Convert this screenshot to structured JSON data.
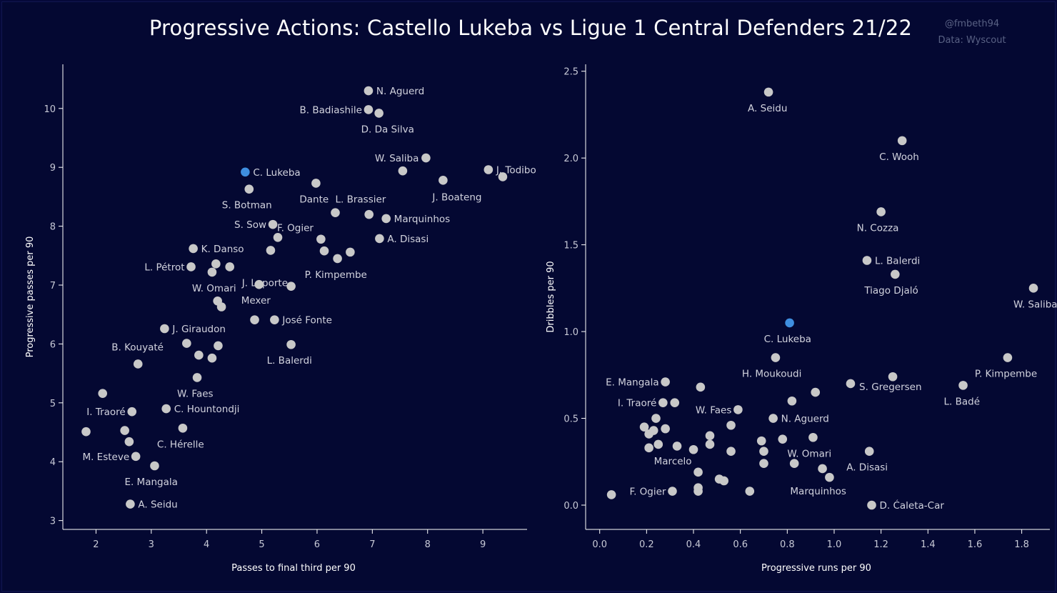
{
  "title": "Progressive Actions: Castello Lukeba vs Ligue 1 Central Defenders 21/22",
  "credit_handle": "@fmbeth94",
  "credit_source": "Data: Wyscout",
  "colors": {
    "background": "#040832",
    "point": "#c8c8c8",
    "highlight": "#3f8fe0",
    "axis": "#ffffff",
    "text": "#d2d3de"
  },
  "chart_data": [
    {
      "type": "scatter",
      "xlabel": "Passes to final third per 90",
      "ylabel": "Progressive passes per 90",
      "xlim": [
        1.4,
        9.8
      ],
      "ylim": [
        2.85,
        10.75
      ],
      "xticks": [
        2,
        3,
        4,
        5,
        6,
        7,
        8,
        9
      ],
      "yticks": [
        3,
        4,
        5,
        6,
        7,
        8,
        9,
        10
      ],
      "grid": false,
      "highlight_color": "#3f8fe0",
      "points": [
        {
          "x": 4.7,
          "y": 8.92,
          "label": "C. Lukeba",
          "highlight": true
        },
        {
          "x": 6.93,
          "y": 10.3,
          "label": "N. Aguerd"
        },
        {
          "x": 6.93,
          "y": 9.98,
          "label": "B. Badiashile"
        },
        {
          "x": 7.12,
          "y": 9.92,
          "label": "D. Da Silva"
        },
        {
          "x": 7.97,
          "y": 9.16,
          "label": "W. Saliba"
        },
        {
          "x": 7.55,
          "y": 8.94,
          "label": ""
        },
        {
          "x": 9.1,
          "y": 8.96,
          "label": "J. Todibo"
        },
        {
          "x": 9.36,
          "y": 8.84,
          "label": ""
        },
        {
          "x": 8.28,
          "y": 8.78,
          "label": "J. Boateng"
        },
        {
          "x": 4.77,
          "y": 8.63,
          "label": "S. Botman"
        },
        {
          "x": 5.98,
          "y": 8.73,
          "label": "Dante"
        },
        {
          "x": 6.33,
          "y": 8.23,
          "label": "L. Brassier"
        },
        {
          "x": 6.94,
          "y": 8.2,
          "label": ""
        },
        {
          "x": 7.25,
          "y": 8.13,
          "label": "Marquinhos"
        },
        {
          "x": 5.2,
          "y": 8.03,
          "label": "S. Sow"
        },
        {
          "x": 5.29,
          "y": 7.81,
          "label": "F. Ogier"
        },
        {
          "x": 6.07,
          "y": 7.78,
          "label": ""
        },
        {
          "x": 7.13,
          "y": 7.79,
          "label": "A. Disasi"
        },
        {
          "x": 5.16,
          "y": 7.59,
          "label": ""
        },
        {
          "x": 6.13,
          "y": 7.58,
          "label": ""
        },
        {
          "x": 6.6,
          "y": 7.56,
          "label": ""
        },
        {
          "x": 6.37,
          "y": 7.45,
          "label": "P. Kimpembe"
        },
        {
          "x": 3.76,
          "y": 7.62,
          "label": "K. Danso"
        },
        {
          "x": 3.72,
          "y": 7.31,
          "label": "L. Pétrot"
        },
        {
          "x": 4.17,
          "y": 7.36,
          "label": ""
        },
        {
          "x": 4.1,
          "y": 7.22,
          "label": "W. Omari"
        },
        {
          "x": 4.42,
          "y": 7.31,
          "label": "J. Laporte"
        },
        {
          "x": 4.95,
          "y": 7.01,
          "label": "Mexer"
        },
        {
          "x": 5.53,
          "y": 6.98,
          "label": ""
        },
        {
          "x": 4.2,
          "y": 6.73,
          "label": ""
        },
        {
          "x": 4.27,
          "y": 6.63,
          "label": ""
        },
        {
          "x": 4.87,
          "y": 6.41,
          "label": ""
        },
        {
          "x": 5.23,
          "y": 6.41,
          "label": "José Fonte"
        },
        {
          "x": 3.24,
          "y": 6.26,
          "label": "J. Giraudon"
        },
        {
          "x": 3.64,
          "y": 6.01,
          "label": ""
        },
        {
          "x": 4.21,
          "y": 5.97,
          "label": ""
        },
        {
          "x": 5.53,
          "y": 5.99,
          "label": "L. Balerdi"
        },
        {
          "x": 3.86,
          "y": 5.81,
          "label": ""
        },
        {
          "x": 4.1,
          "y": 5.76,
          "label": ""
        },
        {
          "x": 2.76,
          "y": 5.66,
          "label": "B. Kouyaté"
        },
        {
          "x": 3.83,
          "y": 5.43,
          "label": "W. Faes"
        },
        {
          "x": 2.12,
          "y": 5.16,
          "label": ""
        },
        {
          "x": 2.65,
          "y": 4.85,
          "label": "I. Traoré"
        },
        {
          "x": 3.27,
          "y": 4.9,
          "label": "C. Hountondji"
        },
        {
          "x": 1.82,
          "y": 4.51,
          "label": ""
        },
        {
          "x": 2.52,
          "y": 4.53,
          "label": ""
        },
        {
          "x": 2.6,
          "y": 4.34,
          "label": ""
        },
        {
          "x": 3.57,
          "y": 4.57,
          "label": "C. Hérelle"
        },
        {
          "x": 2.72,
          "y": 4.09,
          "label": "M. Esteve"
        },
        {
          "x": 3.06,
          "y": 3.93,
          "label": "E. Mangala"
        },
        {
          "x": 2.62,
          "y": 3.28,
          "label": "A. Seidu"
        }
      ]
    },
    {
      "type": "scatter",
      "xlabel": "Progressive runs per 90",
      "ylabel": "Dribbles per 90",
      "xlim": [
        -0.06,
        1.92
      ],
      "ylim": [
        -0.14,
        2.54
      ],
      "xticks": [
        "0.0",
        "0.2",
        "0.4",
        "0.6",
        "0.8",
        "1.0",
        "1.2",
        "1.4",
        "1.6",
        "1.8"
      ],
      "yticks": [
        "0.0",
        "0.5",
        "1.0",
        "1.5",
        "2.0",
        "2.5"
      ],
      "grid": false,
      "highlight_color": "#3f8fe0",
      "points": [
        {
          "x": 0.81,
          "y": 1.05,
          "label": "C. Lukeba",
          "highlight": true
        },
        {
          "x": 0.72,
          "y": 2.38,
          "label": "A. Seidu"
        },
        {
          "x": 1.29,
          "y": 2.1,
          "label": "C. Wooh"
        },
        {
          "x": 1.2,
          "y": 1.69,
          "label": "N. Cozza"
        },
        {
          "x": 1.14,
          "y": 1.41,
          "label": "L. Balerdi"
        },
        {
          "x": 1.26,
          "y": 1.33,
          "label": "Tiago Djaló"
        },
        {
          "x": 1.85,
          "y": 1.25,
          "label": "W. Saliba"
        },
        {
          "x": 1.74,
          "y": 0.85,
          "label": "P. Kimpembe"
        },
        {
          "x": 0.75,
          "y": 0.85,
          "label": "H. Moukoudi"
        },
        {
          "x": 1.55,
          "y": 0.69,
          "label": "L. Badé"
        },
        {
          "x": 1.25,
          "y": 0.74,
          "label": "S. Gregersen"
        },
        {
          "x": 1.07,
          "y": 0.7,
          "label": ""
        },
        {
          "x": 0.92,
          "y": 0.65,
          "label": ""
        },
        {
          "x": 0.82,
          "y": 0.6,
          "label": ""
        },
        {
          "x": 0.28,
          "y": 0.71,
          "label": "E. Mangala"
        },
        {
          "x": 0.43,
          "y": 0.68,
          "label": ""
        },
        {
          "x": 0.27,
          "y": 0.59,
          "label": "I. Traoré"
        },
        {
          "x": 0.32,
          "y": 0.59,
          "label": ""
        },
        {
          "x": 0.59,
          "y": 0.55,
          "label": "W. Faes"
        },
        {
          "x": 0.74,
          "y": 0.5,
          "label": "N. Aguerd"
        },
        {
          "x": 0.24,
          "y": 0.5,
          "label": ""
        },
        {
          "x": 0.19,
          "y": 0.45,
          "label": ""
        },
        {
          "x": 0.23,
          "y": 0.43,
          "label": ""
        },
        {
          "x": 0.21,
          "y": 0.41,
          "label": ""
        },
        {
          "x": 0.28,
          "y": 0.44,
          "label": ""
        },
        {
          "x": 0.56,
          "y": 0.46,
          "label": ""
        },
        {
          "x": 0.47,
          "y": 0.4,
          "label": ""
        },
        {
          "x": 0.69,
          "y": 0.37,
          "label": ""
        },
        {
          "x": 0.78,
          "y": 0.38,
          "label": ""
        },
        {
          "x": 0.91,
          "y": 0.39,
          "label": "W. Omari"
        },
        {
          "x": 0.21,
          "y": 0.33,
          "label": ""
        },
        {
          "x": 0.25,
          "y": 0.35,
          "label": ""
        },
        {
          "x": 0.33,
          "y": 0.34,
          "label": ""
        },
        {
          "x": 0.4,
          "y": 0.32,
          "label": ""
        },
        {
          "x": 0.47,
          "y": 0.35,
          "label": ""
        },
        {
          "x": 0.56,
          "y": 0.31,
          "label": ""
        },
        {
          "x": 0.7,
          "y": 0.31,
          "label": ""
        },
        {
          "x": 1.15,
          "y": 0.31,
          "label": "A. Disasi"
        },
        {
          "x": 0.42,
          "y": 0.19,
          "label": "Marcelo"
        },
        {
          "x": 0.7,
          "y": 0.24,
          "label": ""
        },
        {
          "x": 0.83,
          "y": 0.24,
          "label": ""
        },
        {
          "x": 0.95,
          "y": 0.21,
          "label": ""
        },
        {
          "x": 0.98,
          "y": 0.16,
          "label": "Marquinhos"
        },
        {
          "x": 0.51,
          "y": 0.15,
          "label": ""
        },
        {
          "x": 0.53,
          "y": 0.14,
          "label": ""
        },
        {
          "x": 0.42,
          "y": 0.1,
          "label": ""
        },
        {
          "x": 0.42,
          "y": 0.08,
          "label": ""
        },
        {
          "x": 0.05,
          "y": 0.06,
          "label": ""
        },
        {
          "x": 0.31,
          "y": 0.08,
          "label": "F. Ogier"
        },
        {
          "x": 0.64,
          "y": 0.08,
          "label": ""
        },
        {
          "x": 1.16,
          "y": 0.0,
          "label": "D. Ćaleta-Car"
        }
      ]
    }
  ]
}
